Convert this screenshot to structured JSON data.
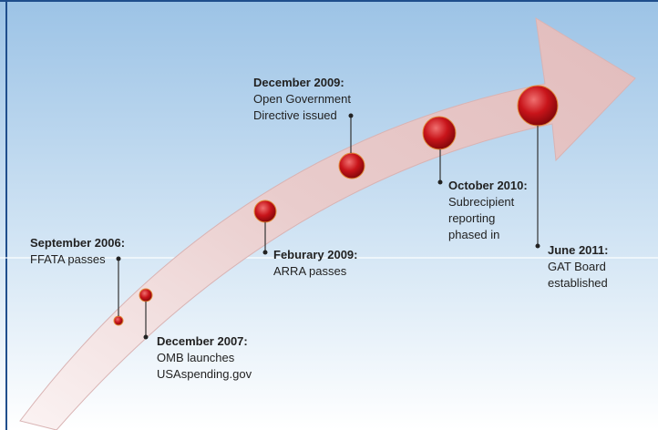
{
  "events": [
    {
      "date": "September 2006:",
      "lines": [
        "FFATA passes"
      ]
    },
    {
      "date": "December 2007:",
      "lines": [
        "OMB launches",
        "USAspending.gov"
      ]
    },
    {
      "date": "Feburary 2009:",
      "lines": [
        "ARRA passes"
      ]
    },
    {
      "date": "December 2009:",
      "lines": [
        "Open Government",
        "Directive issued"
      ]
    },
    {
      "date": "October 2010:",
      "lines": [
        "Subrecipient",
        "reporting",
        "phased in"
      ]
    },
    {
      "date": "June 2011:",
      "lines": [
        "GAT Board",
        "established"
      ]
    }
  ]
}
